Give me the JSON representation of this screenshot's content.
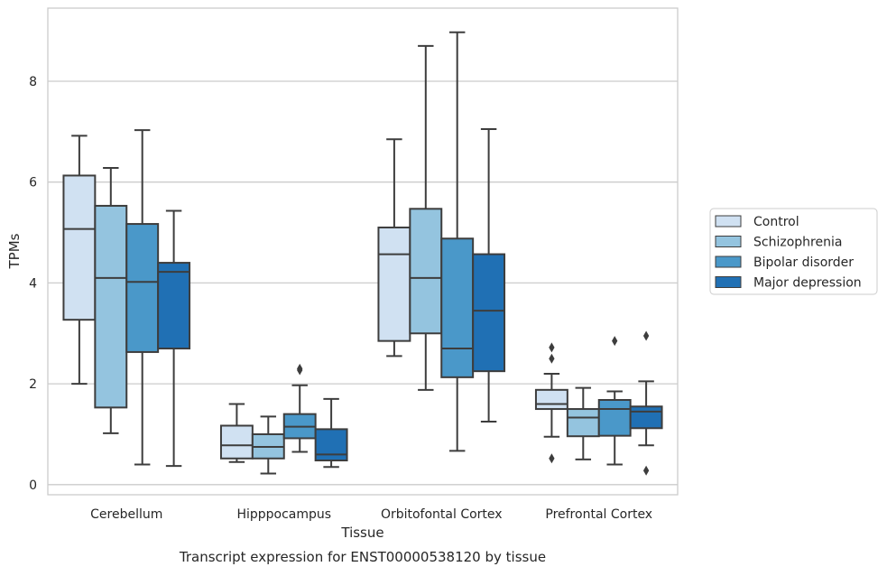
{
  "chart_data": {
    "type": "box",
    "caption": "Transcript expression for ENST00000538120 by tissue",
    "xlabel": "Tissue",
    "ylabel": "TPMs",
    "ylim": [
      -0.2,
      9.45
    ],
    "yticks": [
      0,
      2,
      4,
      6,
      8
    ],
    "grid": "horizontal",
    "legend_position": "right",
    "categories": [
      "Cerebellum",
      "Hipppocampus",
      "Orbitofontal Cortex",
      "Prefrontal Cortex"
    ],
    "series": [
      {
        "name": "Control",
        "color": "#d0e1f2",
        "boxes": [
          {
            "min": 2.0,
            "q1": 3.27,
            "median": 5.07,
            "q3": 6.13,
            "max": 6.92,
            "outliers": []
          },
          {
            "min": 0.45,
            "q1": 0.52,
            "median": 0.78,
            "q3": 1.17,
            "max": 1.6,
            "outliers": []
          },
          {
            "min": 2.55,
            "q1": 2.85,
            "median": 4.57,
            "q3": 5.1,
            "max": 6.85,
            "outliers": []
          },
          {
            "min": 0.95,
            "q1": 1.5,
            "median": 1.6,
            "q3": 1.88,
            "max": 2.2,
            "outliers": [
              2.72,
              2.5,
              0.52
            ]
          }
        ]
      },
      {
        "name": "Schizophrenia",
        "color": "#94c4df",
        "boxes": [
          {
            "min": 1.02,
            "q1": 1.53,
            "median": 4.1,
            "q3": 5.53,
            "max": 6.28,
            "outliers": []
          },
          {
            "min": 0.22,
            "q1": 0.52,
            "median": 0.75,
            "q3": 1.0,
            "max": 1.35,
            "outliers": []
          },
          {
            "min": 1.88,
            "q1": 3.0,
            "median": 4.1,
            "q3": 5.47,
            "max": 8.7,
            "outliers": []
          },
          {
            "min": 0.5,
            "q1": 0.96,
            "median": 1.33,
            "q3": 1.5,
            "max": 1.92,
            "outliers": []
          }
        ]
      },
      {
        "name": "Bipolar disorder",
        "color": "#4a98c9",
        "boxes": [
          {
            "min": 0.4,
            "q1": 2.63,
            "median": 4.02,
            "q3": 5.17,
            "max": 7.03,
            "outliers": []
          },
          {
            "min": 0.65,
            "q1": 0.92,
            "median": 1.15,
            "q3": 1.4,
            "max": 1.97,
            "outliers": [
              2.3,
              2.27
            ]
          },
          {
            "min": 0.67,
            "q1": 2.13,
            "median": 2.7,
            "q3": 4.88,
            "max": 8.97,
            "outliers": []
          },
          {
            "min": 0.4,
            "q1": 0.97,
            "median": 1.5,
            "q3": 1.68,
            "max": 1.85,
            "outliers": [
              2.85
            ]
          }
        ]
      },
      {
        "name": "Major depression",
        "color": "#2070b4",
        "boxes": [
          {
            "min": 0.37,
            "q1": 2.7,
            "median": 4.22,
            "q3": 4.4,
            "max": 5.43,
            "outliers": []
          },
          {
            "min": 0.35,
            "q1": 0.48,
            "median": 0.6,
            "q3": 1.1,
            "max": 1.7,
            "outliers": []
          },
          {
            "min": 1.25,
            "q1": 2.25,
            "median": 3.45,
            "q3": 4.57,
            "max": 7.05,
            "outliers": []
          },
          {
            "min": 0.78,
            "q1": 1.12,
            "median": 1.45,
            "q3": 1.55,
            "max": 2.05,
            "outliers": [
              2.95,
              0.28
            ]
          }
        ]
      }
    ]
  }
}
